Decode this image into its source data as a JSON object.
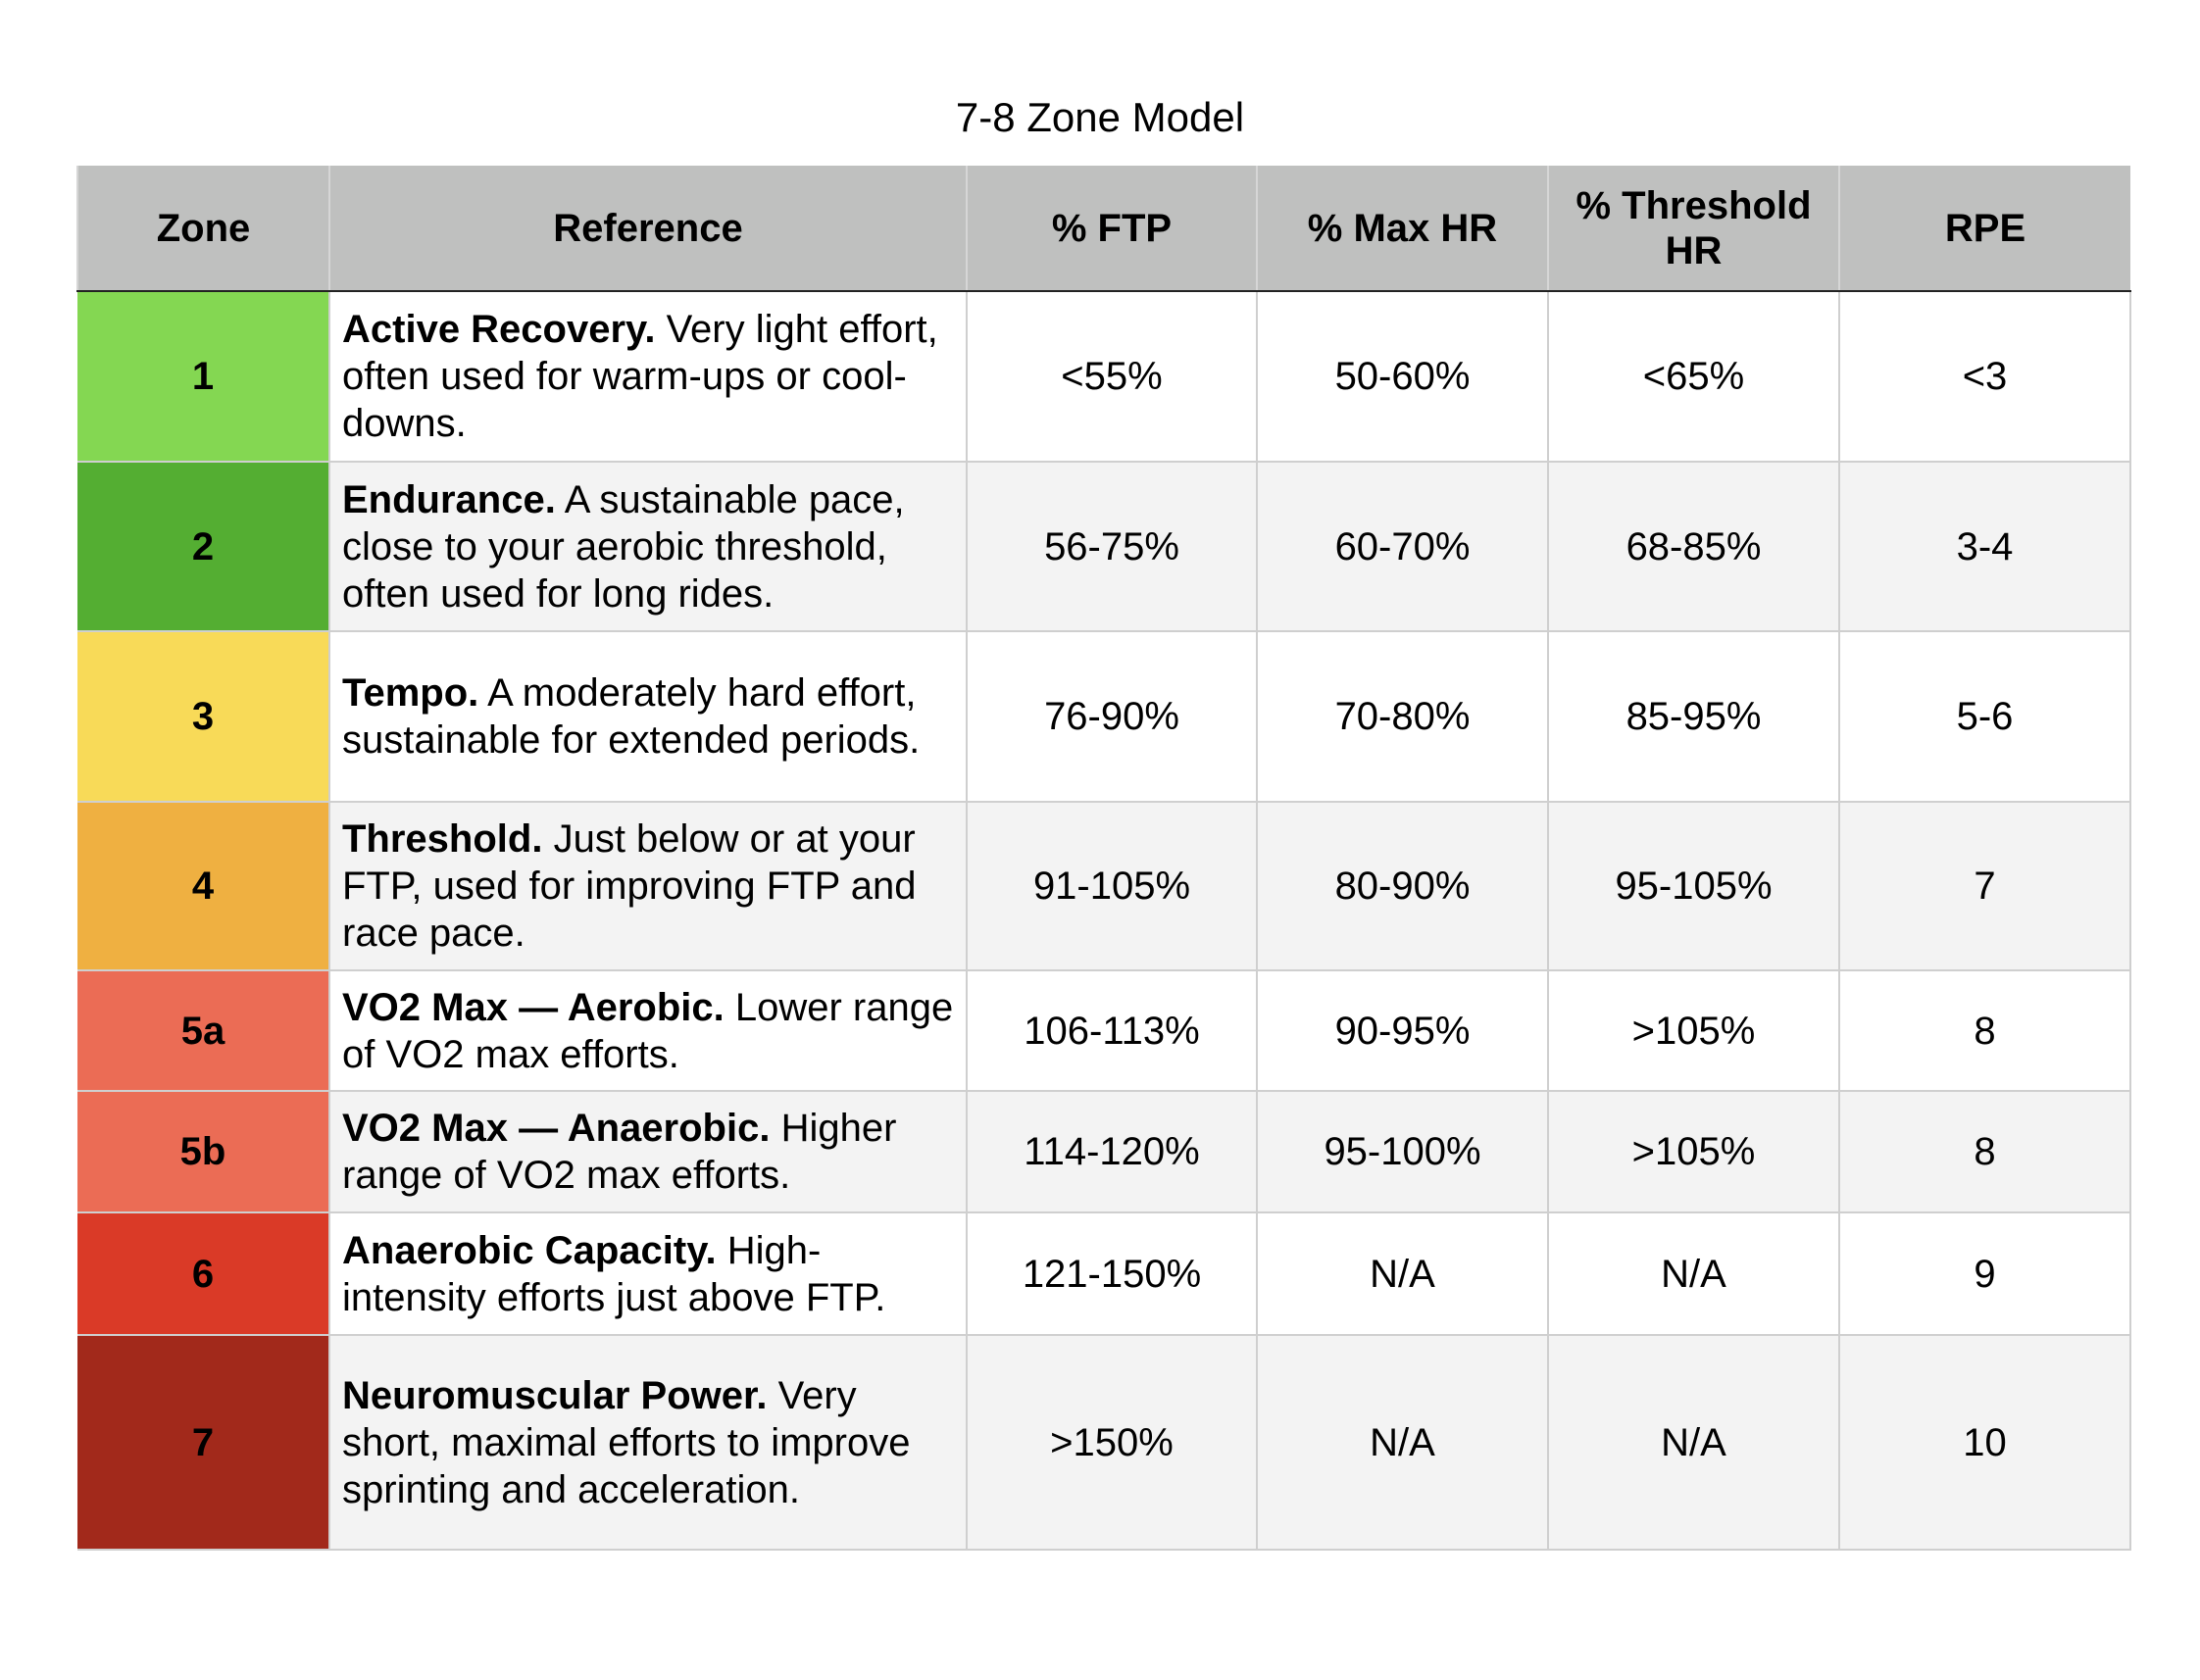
{
  "title": "7-8 Zone Model",
  "table": {
    "headers": [
      "Zone",
      "Reference",
      "% FTP",
      "% Max HR",
      "% Threshold HR",
      "RPE"
    ],
    "rows": [
      {
        "zone": "1",
        "color": "#84d752",
        "name": "Active Recovery.",
        "text": "Very light effort, often used for warm-ups or cool-downs.",
        "ftp": "<55%",
        "max_hr": "50-60%",
        "threshold_hr": "<65%",
        "rpe": "<3"
      },
      {
        "zone": "2",
        "color": "#54ae32",
        "name": "Endurance.",
        "text": "A sustainable pace, close to your aerobic threshold, often used for long rides.",
        "ftp": "56-75%",
        "max_hr": "60-70%",
        "threshold_hr": "68-85%",
        "rpe": "3-4"
      },
      {
        "zone": "3",
        "color": "#f8da58",
        "name": "Tempo.",
        "text": "A moderately hard effort, sustainable for extended periods.",
        "ftp": "76-90%",
        "max_hr": "70-80%",
        "threshold_hr": "85-95%",
        "rpe": "5-6"
      },
      {
        "zone": "4",
        "color": "#efb041",
        "name": "Threshold.",
        "text": "Just below or at your FTP, used for improving FTP and race pace.",
        "ftp": "91-105%",
        "max_hr": "80-90%",
        "threshold_hr": "95-105%",
        "rpe": "7"
      },
      {
        "zone": "5a",
        "color": "#eb6c55",
        "name": "VO2 Max — Aerobic.",
        "text": "Lower range of VO2 max efforts.",
        "ftp": "106-113%",
        "max_hr": "90-95%",
        "threshold_hr": ">105%",
        "rpe": "8"
      },
      {
        "zone": "5b",
        "color": "#eb6c55",
        "name": "VO2 Max — Anaerobic.",
        "text": "Higher range of VO2 max efforts.",
        "ftp": "114-120%",
        "max_hr": "95-100%",
        "threshold_hr": ">105%",
        "rpe": "8"
      },
      {
        "zone": "6",
        "color": "#da3a27",
        "name": "Anaerobic Capacity.",
        "text": "High-intensity efforts just above FTP.",
        "ftp": "121-150%",
        "max_hr": "N/A",
        "threshold_hr": "N/A",
        "rpe": "9"
      },
      {
        "zone": "7",
        "color": "#a2291b",
        "name": "Neuromuscular Power.",
        "text": "Very short, maximal efforts to improve sprinting and acceleration.",
        "ftp": ">150%",
        "max_hr": "N/A",
        "threshold_hr": "N/A",
        "rpe": "10"
      }
    ]
  }
}
